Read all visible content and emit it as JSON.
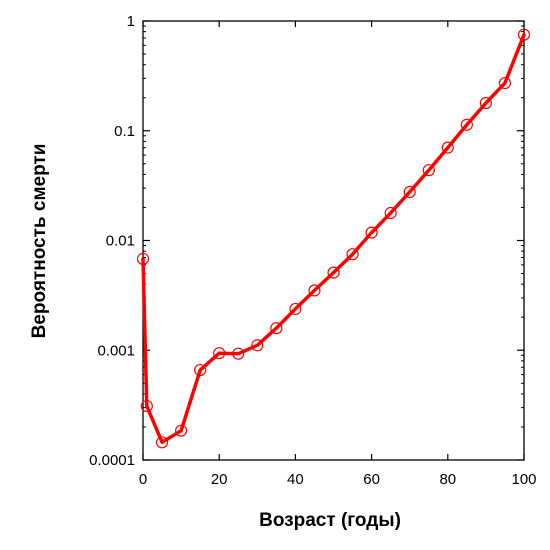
{
  "chart_data": {
    "type": "line",
    "title": "",
    "xlabel": "Возраст (годы)",
    "ylabel": "Вероятность смерти",
    "xlim": [
      0,
      100
    ],
    "ylim": [
      0.0001,
      1
    ],
    "yscale": "log",
    "grid": false,
    "x_ticks": [
      {
        "value": 0,
        "label": "0"
      },
      {
        "value": 20,
        "label": "20"
      },
      {
        "value": 40,
        "label": "40"
      },
      {
        "value": 60,
        "label": "60"
      },
      {
        "value": 80,
        "label": "80"
      },
      {
        "value": 100,
        "label": "100"
      }
    ],
    "y_ticks": [
      {
        "value": 0.0001,
        "label": "0.0001"
      },
      {
        "value": 0.001,
        "label": "0.001"
      },
      {
        "value": 0.01,
        "label": "0.01"
      },
      {
        "value": 0.1,
        "label": "0.1"
      },
      {
        "value": 1,
        "label": "1"
      }
    ],
    "series": [
      {
        "color": "#ff0000",
        "marker": "open-circle",
        "x": [
          0,
          1,
          5,
          10,
          15,
          20,
          25,
          30,
          35,
          40,
          45,
          50,
          55,
          60,
          65,
          70,
          75,
          80,
          85,
          90,
          95,
          100
        ],
        "y": [
          0.0068,
          0.00031,
          0.000145,
          0.000185,
          0.00066,
          0.00094,
          0.00093,
          0.00111,
          0.00159,
          0.00238,
          0.00351,
          0.0051,
          0.0075,
          0.0118,
          0.0178,
          0.0277,
          0.0437,
          0.0702,
          0.1134,
          0.179,
          0.272,
          0.75
        ]
      }
    ]
  }
}
